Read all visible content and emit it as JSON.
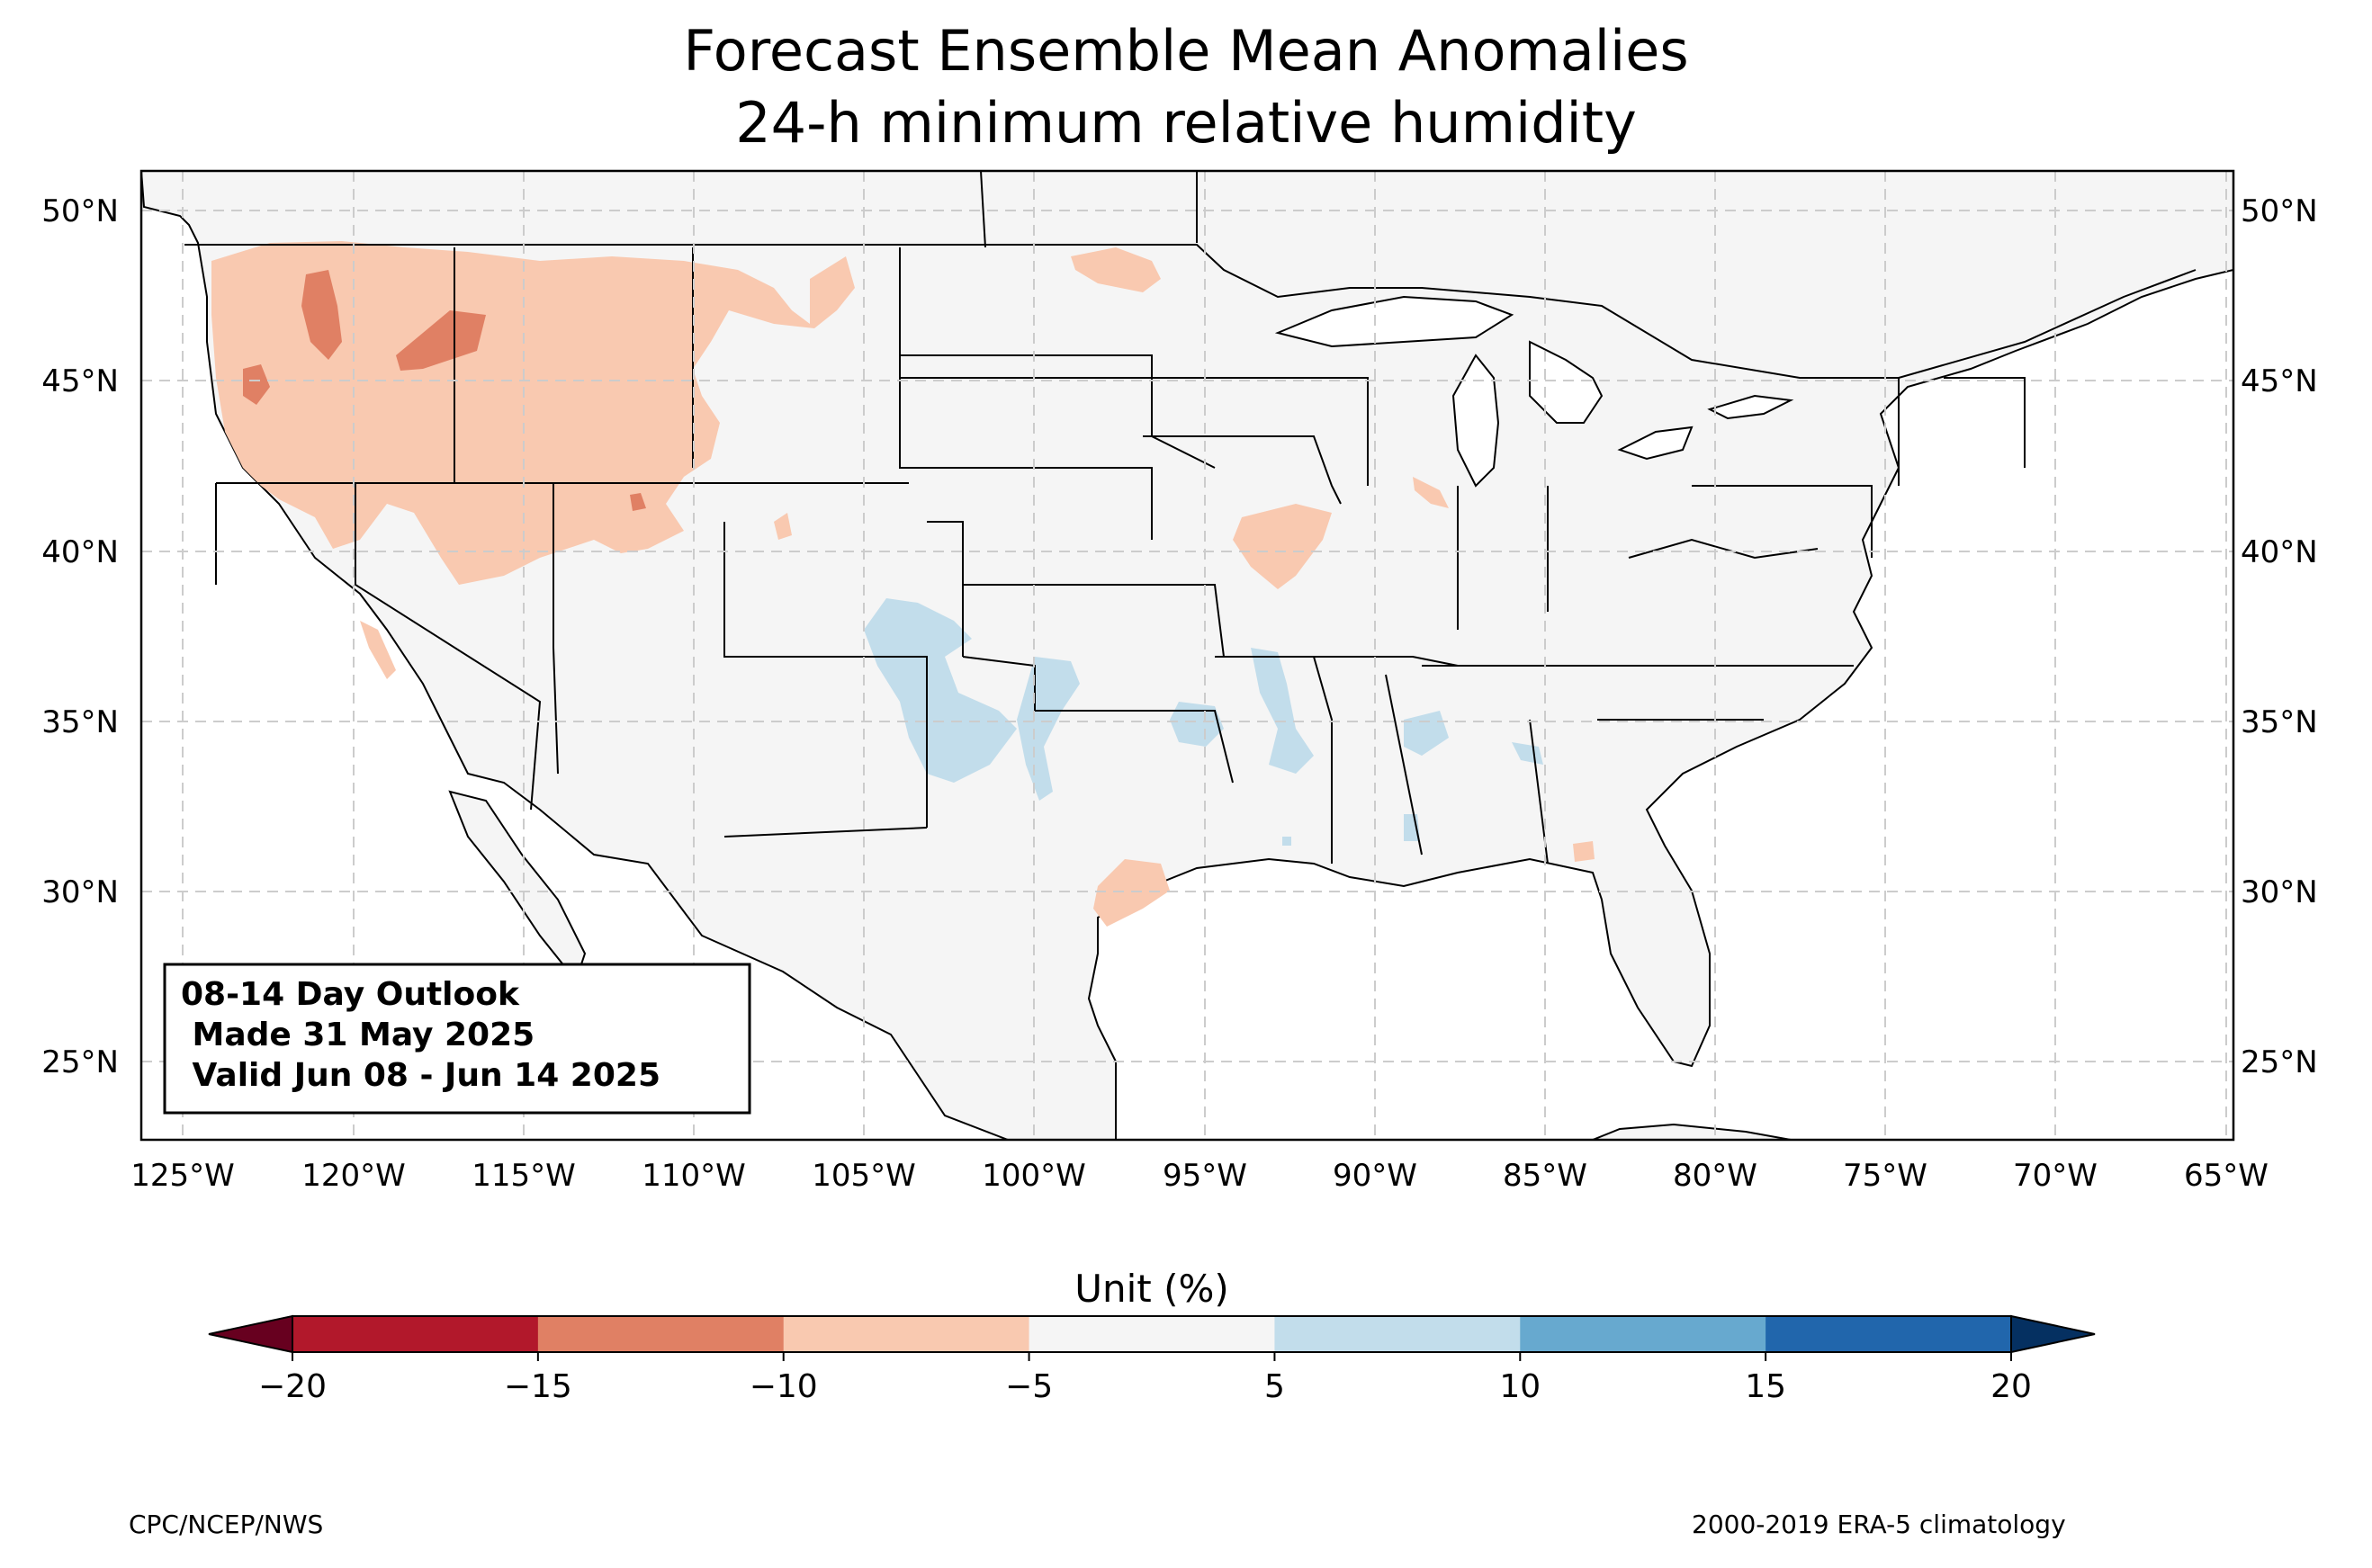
{
  "title": "Forecast Ensemble Mean Anomalies",
  "subtitle": "24-h minimum relative humidity",
  "outlook_box": {
    "line1": "08-14 Day Outlook",
    "line2": " Made 31 May 2025",
    "line3": " Valid Jun 08 - Jun 14 2025"
  },
  "axes": {
    "lon_ticks": [
      "125°W",
      "120°W",
      "115°W",
      "110°W",
      "105°W",
      "100°W",
      "95°W",
      "90°W",
      "85°W",
      "80°W",
      "75°W",
      "70°W",
      "65°W"
    ],
    "lat_ticks": [
      "50°N",
      "45°N",
      "40°N",
      "35°N",
      "30°N",
      "25°N"
    ]
  },
  "colorbar": {
    "label": "Unit (%)",
    "ticks": [
      "−20",
      "−15",
      "−10",
      "−5",
      "5",
      "10",
      "15",
      "20"
    ],
    "colors": [
      "#b2182b",
      "#e08064",
      "#f9c9b0",
      "#f5f5f5",
      "#c2ddeb",
      "#67a9cf",
      "#2166ac"
    ],
    "extend_low": "#67001f",
    "extend_high": "#053061"
  },
  "footer": {
    "left": "CPC/NCEP/NWS",
    "right": "2000-2019 ERA-5 climatology"
  },
  "colors": {
    "land": "#f5f5f5",
    "water": "#ffffff",
    "grid": "#d0d0d0"
  }
}
